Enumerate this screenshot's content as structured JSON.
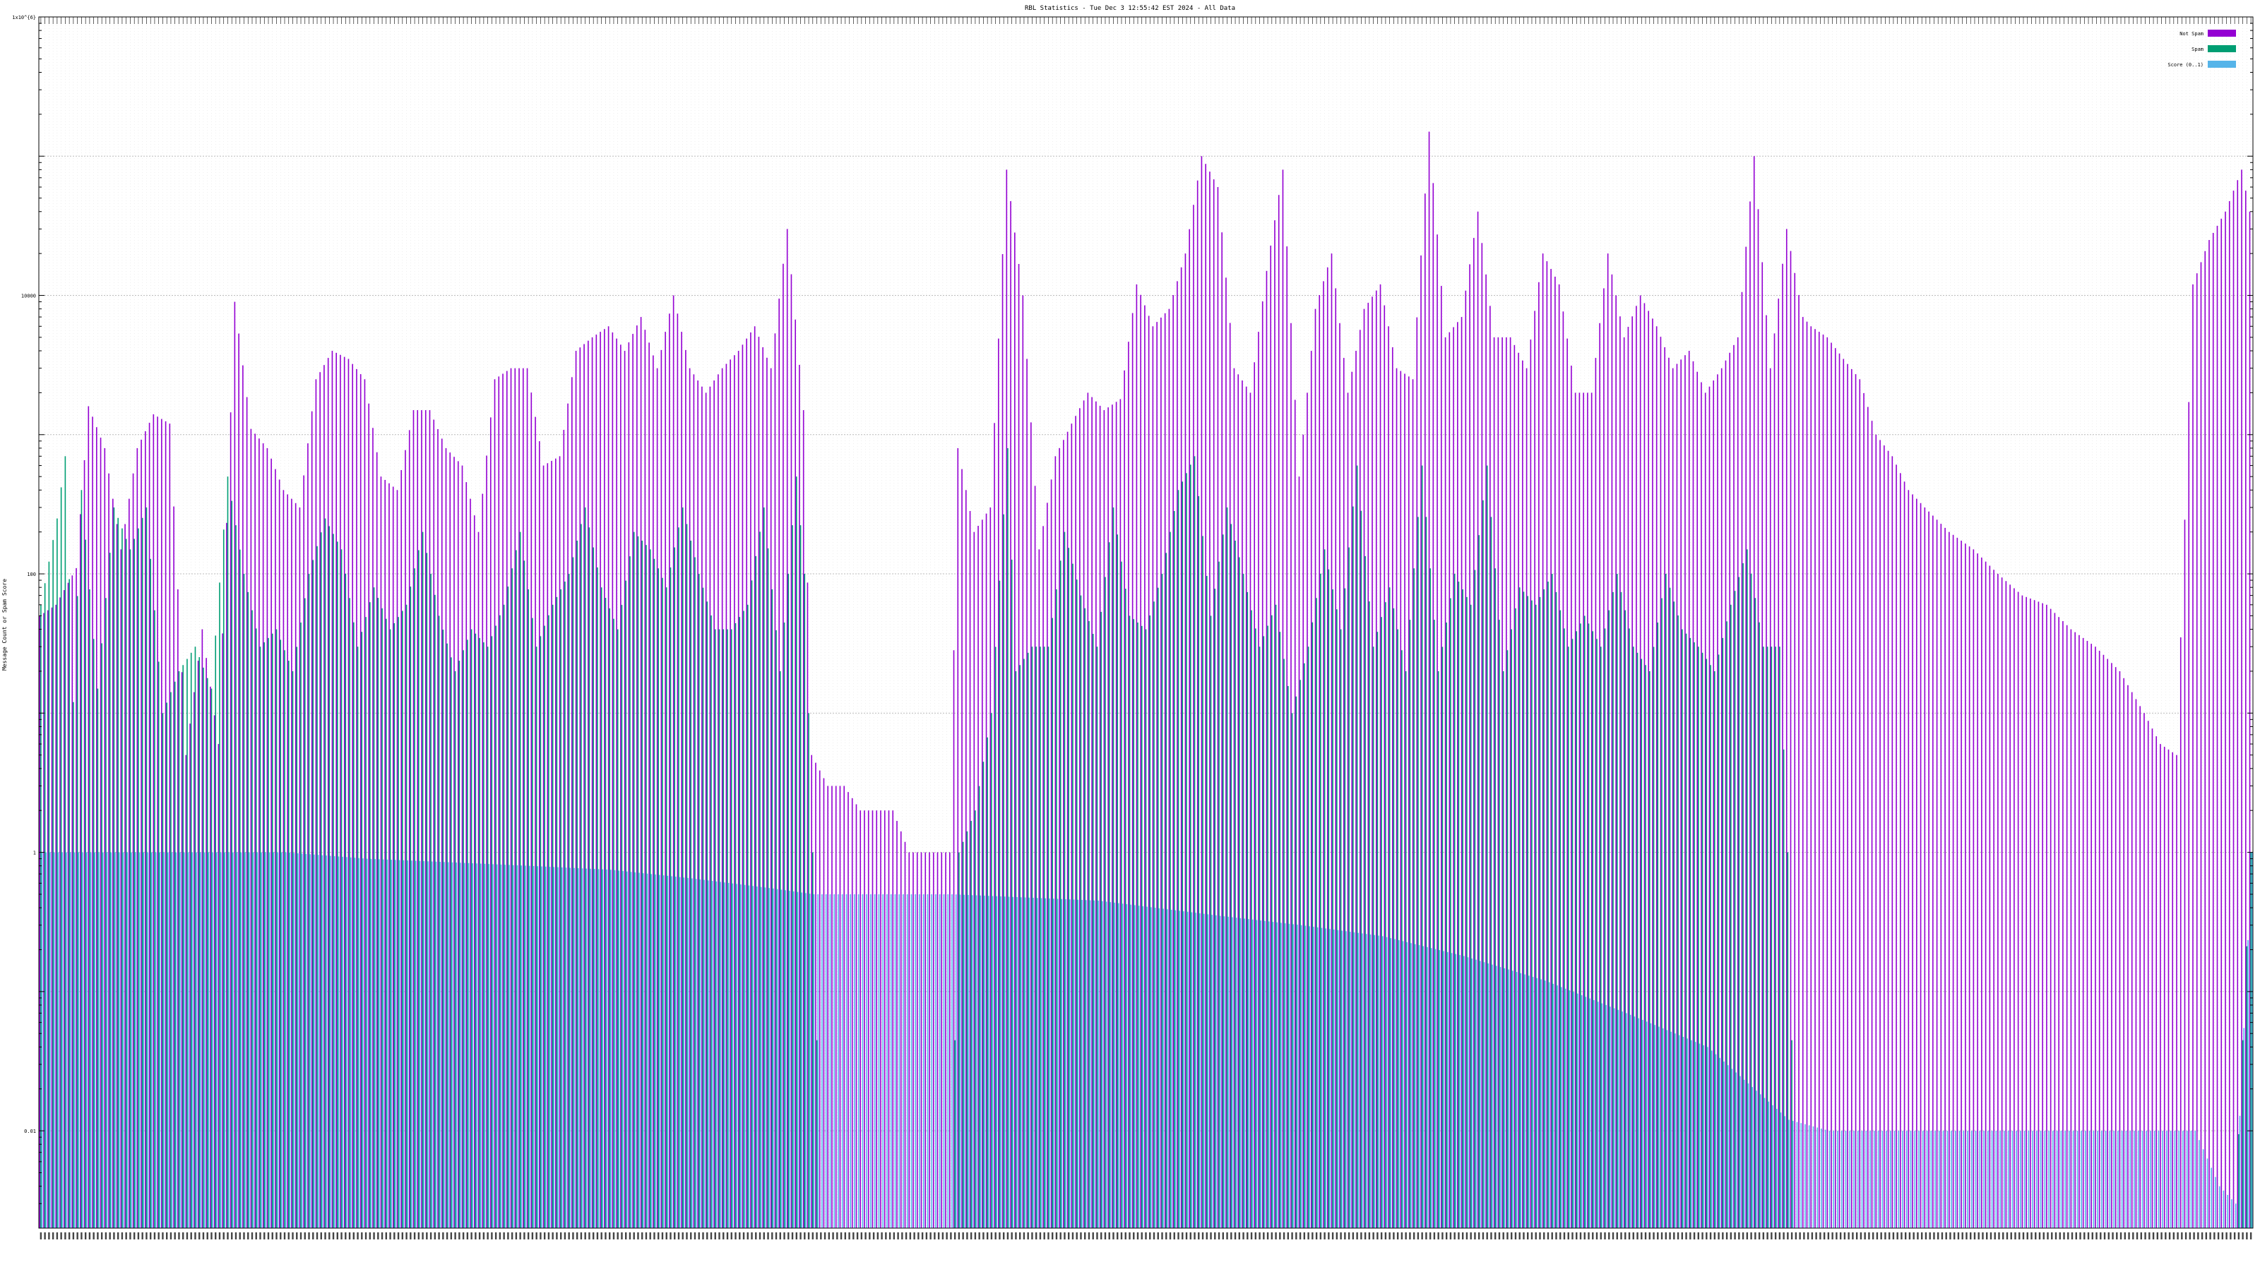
{
  "chart_data": {
    "type": "bar",
    "title": "RBL Statistics - Tue Dec  3 12:55:42 EST 2024 - All Data",
    "xlabel": "",
    "ylabel": "Message Count or Spam Score",
    "yscale": "log",
    "ylim": [
      0.002,
      1000000
    ],
    "yticks": [
      {
        "value": 0.01,
        "label": "0.01"
      },
      {
        "value": 1,
        "label": "1"
      },
      {
        "value": 100,
        "label": "100"
      },
      {
        "value": 10000,
        "label": "10000"
      },
      {
        "value": 1000000,
        "label": "1x10^{6}"
      }
    ],
    "grid": true,
    "legend_position": "top-right",
    "colors": {
      "not_spam": "#9400D3",
      "spam": "#009E73",
      "score": "#56B4E9"
    },
    "series": [
      {
        "name": "Not Spam",
        "key": "not_spam"
      },
      {
        "name": "Spam",
        "key": "spam"
      },
      {
        "name": "Score (0..1)",
        "key": "score"
      }
    ],
    "notSpam_anchors": [
      [
        0,
        50
      ],
      [
        4,
        60
      ],
      [
        9,
        110
      ],
      [
        12,
        1600
      ],
      [
        16,
        800
      ],
      [
        20,
        150
      ],
      [
        24,
        800
      ],
      [
        28,
        1400
      ],
      [
        32,
        1200
      ],
      [
        36,
        5
      ],
      [
        40,
        40
      ],
      [
        44,
        6
      ],
      [
        48,
        9000
      ],
      [
        52,
        1100
      ],
      [
        56,
        800
      ],
      [
        60,
        400
      ],
      [
        64,
        300
      ],
      [
        68,
        2500
      ],
      [
        72,
        4000
      ],
      [
        76,
        3500
      ],
      [
        80,
        2500
      ],
      [
        84,
        500
      ],
      [
        88,
        400
      ],
      [
        92,
        1500
      ],
      [
        96,
        1500
      ],
      [
        100,
        800
      ],
      [
        104,
        600
      ],
      [
        108,
        200
      ],
      [
        112,
        2500
      ],
      [
        116,
        3000
      ],
      [
        120,
        3000
      ],
      [
        124,
        600
      ],
      [
        128,
        700
      ],
      [
        132,
        4000
      ],
      [
        136,
        5000
      ],
      [
        140,
        6000
      ],
      [
        144,
        4000
      ],
      [
        148,
        7000
      ],
      [
        152,
        3000
      ],
      [
        156,
        10000
      ],
      [
        160,
        3000
      ],
      [
        164,
        2000
      ],
      [
        168,
        3000
      ],
      [
        172,
        4000
      ],
      [
        176,
        6000
      ],
      [
        180,
        3000
      ],
      [
        184,
        30000
      ],
      [
        188,
        1500
      ],
      [
        190,
        5
      ],
      [
        194,
        3
      ],
      [
        198,
        3
      ],
      [
        202,
        2
      ],
      [
        206,
        2
      ],
      [
        210,
        2
      ],
      [
        214,
        1
      ],
      [
        220,
        1
      ],
      [
        224,
        1
      ],
      [
        226,
        800
      ],
      [
        230,
        200
      ],
      [
        234,
        300
      ],
      [
        238,
        80000
      ],
      [
        242,
        10000
      ],
      [
        246,
        150
      ],
      [
        250,
        700
      ],
      [
        254,
        1200
      ],
      [
        258,
        2000
      ],
      [
        262,
        1500
      ],
      [
        266,
        1800
      ],
      [
        270,
        12000
      ],
      [
        274,
        6000
      ],
      [
        278,
        8000
      ],
      [
        282,
        20000
      ],
      [
        286,
        100000
      ],
      [
        290,
        60000
      ],
      [
        294,
        3000
      ],
      [
        298,
        2000
      ],
      [
        302,
        15000
      ],
      [
        306,
        80000
      ],
      [
        310,
        500
      ],
      [
        314,
        8000
      ],
      [
        318,
        20000
      ],
      [
        322,
        2000
      ],
      [
        326,
        8000
      ],
      [
        330,
        12000
      ],
      [
        334,
        3000
      ],
      [
        338,
        2500
      ],
      [
        342,
        150000
      ],
      [
        346,
        5000
      ],
      [
        350,
        7000
      ],
      [
        354,
        40000
      ],
      [
        358,
        5000
      ],
      [
        362,
        5000
      ],
      [
        366,
        3000
      ],
      [
        370,
        20000
      ],
      [
        374,
        12000
      ],
      [
        378,
        2000
      ],
      [
        382,
        2000
      ],
      [
        386,
        20000
      ],
      [
        390,
        5000
      ],
      [
        394,
        10000
      ],
      [
        398,
        6000
      ],
      [
        402,
        3000
      ],
      [
        406,
        4000
      ],
      [
        410,
        2000
      ],
      [
        414,
        3000
      ],
      [
        418,
        5000
      ],
      [
        422,
        100000
      ],
      [
        426,
        3000
      ],
      [
        430,
        30000
      ],
      [
        434,
        7000
      ],
      [
        436,
        6000
      ],
      [
        440,
        5000
      ],
      [
        444,
        3500
      ],
      [
        448,
        2500
      ],
      [
        452,
        1000
      ],
      [
        456,
        700
      ],
      [
        460,
        400
      ],
      [
        464,
        300
      ],
      [
        470,
        200
      ],
      [
        476,
        150
      ],
      [
        482,
        100
      ],
      [
        488,
        70
      ],
      [
        494,
        60
      ],
      [
        500,
        40
      ],
      [
        506,
        30
      ],
      [
        512,
        20
      ],
      [
        518,
        10
      ],
      [
        522,
        6
      ],
      [
        526,
        5
      ],
      [
        530,
        12000
      ],
      [
        534,
        25000
      ],
      [
        538,
        40000
      ],
      [
        542,
        80000
      ],
      [
        544,
        40000
      ]
    ],
    "spam_anchors": [
      [
        0,
        60
      ],
      [
        4,
        250
      ],
      [
        6,
        700
      ],
      [
        8,
        12
      ],
      [
        10,
        400
      ],
      [
        14,
        15
      ],
      [
        18,
        300
      ],
      [
        22,
        150
      ],
      [
        26,
        300
      ],
      [
        30,
        10
      ],
      [
        34,
        20
      ],
      [
        38,
        30
      ],
      [
        42,
        15
      ],
      [
        46,
        500
      ],
      [
        50,
        100
      ],
      [
        54,
        30
      ],
      [
        58,
        40
      ],
      [
        62,
        20
      ],
      [
        66,
        100
      ],
      [
        70,
        250
      ],
      [
        74,
        150
      ],
      [
        78,
        30
      ],
      [
        82,
        80
      ],
      [
        86,
        40
      ],
      [
        90,
        60
      ],
      [
        94,
        200
      ],
      [
        98,
        50
      ],
      [
        102,
        20
      ],
      [
        106,
        40
      ],
      [
        110,
        30
      ],
      [
        114,
        60
      ],
      [
        118,
        200
      ],
      [
        122,
        30
      ],
      [
        126,
        60
      ],
      [
        130,
        100
      ],
      [
        134,
        300
      ],
      [
        138,
        80
      ],
      [
        142,
        40
      ],
      [
        146,
        200
      ],
      [
        150,
        150
      ],
      [
        154,
        80
      ],
      [
        158,
        300
      ],
      [
        162,
        100
      ],
      [
        166,
        40
      ],
      [
        170,
        40
      ],
      [
        174,
        60
      ],
      [
        178,
        300
      ],
      [
        182,
        20
      ],
      [
        186,
        500
      ],
      [
        188,
        100
      ],
      [
        190,
        1
      ],
      [
        192,
        0.002
      ],
      [
        224,
        0.002
      ],
      [
        226,
        1
      ],
      [
        230,
        2
      ],
      [
        234,
        10
      ],
      [
        238,
        800
      ],
      [
        240,
        20
      ],
      [
        244,
        30
      ],
      [
        248,
        30
      ],
      [
        252,
        200
      ],
      [
        256,
        70
      ],
      [
        260,
        30
      ],
      [
        264,
        300
      ],
      [
        268,
        50
      ],
      [
        272,
        40
      ],
      [
        276,
        100
      ],
      [
        280,
        400
      ],
      [
        284,
        700
      ],
      [
        288,
        50
      ],
      [
        292,
        300
      ],
      [
        296,
        100
      ],
      [
        300,
        30
      ],
      [
        304,
        60
      ],
      [
        308,
        10
      ],
      [
        312,
        30
      ],
      [
        316,
        150
      ],
      [
        320,
        40
      ],
      [
        324,
        600
      ],
      [
        328,
        30
      ],
      [
        332,
        80
      ],
      [
        336,
        20
      ],
      [
        340,
        600
      ],
      [
        344,
        20
      ],
      [
        348,
        100
      ],
      [
        352,
        60
      ],
      [
        356,
        600
      ],
      [
        360,
        20
      ],
      [
        364,
        80
      ],
      [
        368,
        60
      ],
      [
        372,
        100
      ],
      [
        376,
        30
      ],
      [
        380,
        50
      ],
      [
        384,
        30
      ],
      [
        388,
        100
      ],
      [
        392,
        30
      ],
      [
        396,
        20
      ],
      [
        400,
        100
      ],
      [
        404,
        40
      ],
      [
        408,
        30
      ],
      [
        412,
        20
      ],
      [
        416,
        60
      ],
      [
        420,
        150
      ],
      [
        424,
        30
      ],
      [
        428,
        30
      ],
      [
        430,
        1
      ],
      [
        432,
        0.002
      ],
      [
        540,
        0.002
      ],
      [
        544,
        1
      ]
    ],
    "score_anchors": [
      [
        0,
        1
      ],
      [
        60,
        1
      ],
      [
        80,
        0.9
      ],
      [
        100,
        0.85
      ],
      [
        120,
        0.8
      ],
      [
        140,
        0.75
      ],
      [
        160,
        0.65
      ],
      [
        180,
        0.55
      ],
      [
        190,
        0.5
      ],
      [
        224,
        0.5
      ],
      [
        260,
        0.45
      ],
      [
        290,
        0.35
      ],
      [
        310,
        0.3
      ],
      [
        330,
        0.25
      ],
      [
        350,
        0.18
      ],
      [
        370,
        0.12
      ],
      [
        390,
        0.07
      ],
      [
        410,
        0.04
      ],
      [
        430,
        0.012
      ],
      [
        440,
        0.01
      ],
      [
        530,
        0.01
      ],
      [
        536,
        0.004
      ],
      [
        540,
        0.003
      ],
      [
        544,
        1
      ]
    ],
    "n_categories": 545
  }
}
